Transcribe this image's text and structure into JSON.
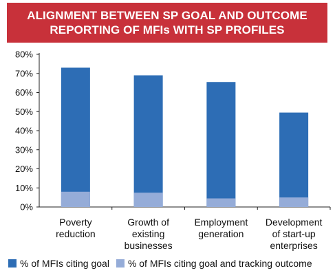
{
  "header": {
    "title_line1": "ALIGNMENT BETWEEN SP GOAL AND OUTCOME",
    "title_line2": "REPORTING OF MFIs WITH SP PROFILES"
  },
  "colors": {
    "banner": "#c8313a",
    "series_goal": "#2d6db5",
    "series_tracking": "#95acd8"
  },
  "chart_data": {
    "type": "bar",
    "stacked_overlay": true,
    "title": "ALIGNMENT BETWEEN SP GOAL AND OUTCOME REPORTING OF MFIs WITH SP PROFILES",
    "categories": [
      [
        "Poverty",
        "reduction"
      ],
      [
        "Growth of",
        "existing",
        "businesses"
      ],
      [
        "Employment",
        "generation"
      ],
      [
        "Development",
        "of start-up",
        "enterprises"
      ]
    ],
    "series": [
      {
        "name": "% of MFIs citing goal",
        "values": [
          73,
          69,
          65.5,
          49.5
        ]
      },
      {
        "name": "% of MFIs citing goal and tracking outcome",
        "values": [
          8,
          7.5,
          4.5,
          5
        ]
      }
    ],
    "ylim": [
      0,
      80
    ],
    "yticks": [
      "0%",
      "10%",
      "20%",
      "30%",
      "40%",
      "50%",
      "60%",
      "70%",
      "80%"
    ],
    "ytick_values": [
      0,
      10,
      20,
      30,
      40,
      50,
      60,
      70,
      80
    ],
    "grid": false,
    "legend_position": "bottom"
  }
}
